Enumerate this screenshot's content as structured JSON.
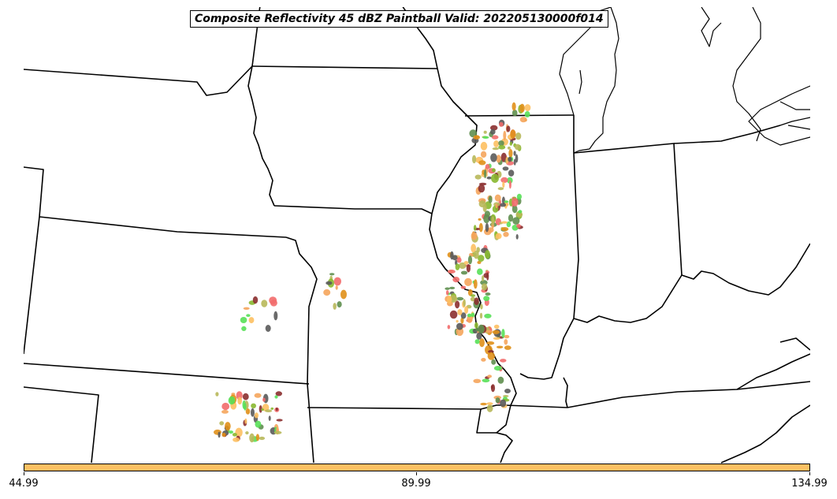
{
  "title": "Composite Reflectivity 45 dBZ Paintball Valid: 202205130000f014",
  "colorbar": {
    "color": "#fdc062",
    "ticks": [
      "44.99",
      "89.99",
      "134.99"
    ]
  },
  "paintball_colors": [
    "#f26b6b",
    "#58e058",
    "#b8b85a",
    "#5a5a5a",
    "#f5a55c",
    "#5f8f4f",
    "#8b2f2f",
    "#e0901a",
    "#fdc062",
    "#88b830"
  ]
}
